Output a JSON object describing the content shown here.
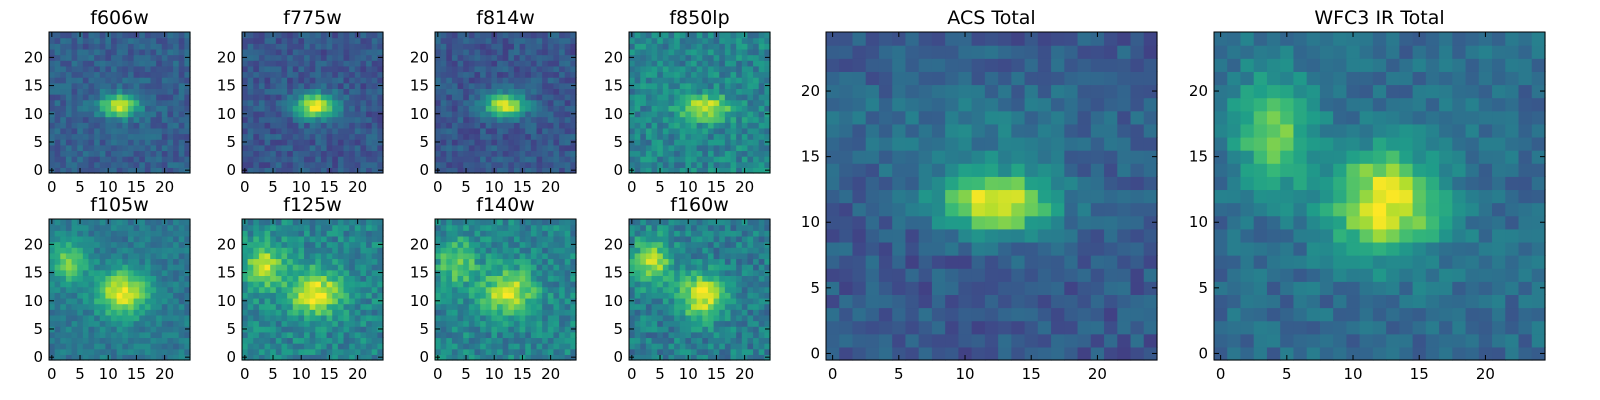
{
  "figure": {
    "colormap": "viridis",
    "colorscale_note_hidden": ""
  },
  "chart_data": [
    {
      "type": "heatmap",
      "title": "f606w",
      "xlim": [
        0,
        24
      ],
      "ylim": [
        0,
        24
      ],
      "xticks": [
        0,
        5,
        10,
        15,
        20
      ],
      "yticks": [
        0,
        5,
        10,
        15,
        20
      ],
      "bg": 0.3,
      "sources": [
        {
          "x": 12,
          "y": 11.5,
          "peak": 0.72,
          "sx": 2.4,
          "sy": 1.4
        }
      ]
    },
    {
      "type": "heatmap",
      "title": "f775w",
      "xlim": [
        0,
        24
      ],
      "ylim": [
        0,
        24
      ],
      "xticks": [
        0,
        5,
        10,
        15,
        20
      ],
      "yticks": [
        0,
        5,
        10,
        15,
        20
      ],
      "bg": 0.27,
      "sources": [
        {
          "x": 12.5,
          "y": 11.5,
          "peak": 0.72,
          "sx": 2.6,
          "sy": 1.5
        }
      ]
    },
    {
      "type": "heatmap",
      "title": "f814w",
      "xlim": [
        0,
        24
      ],
      "ylim": [
        0,
        24
      ],
      "xticks": [
        0,
        5,
        10,
        15,
        20
      ],
      "yticks": [
        0,
        5,
        10,
        15,
        20
      ],
      "bg": 0.27,
      "sources": [
        {
          "x": 12,
          "y": 11.5,
          "peak": 0.72,
          "sx": 2.5,
          "sy": 1.4
        }
      ]
    },
    {
      "type": "heatmap",
      "title": "f850lp",
      "xlim": [
        0,
        24
      ],
      "ylim": [
        0,
        24
      ],
      "xticks": [
        0,
        5,
        10,
        15,
        20
      ],
      "yticks": [
        0,
        5,
        10,
        15,
        20
      ],
      "bg": 0.45,
      "sources": [
        {
          "x": 13,
          "y": 11,
          "peak": 0.5,
          "sx": 3.2,
          "sy": 1.6
        }
      ]
    },
    {
      "type": "heatmap",
      "title": "f105w",
      "xlim": [
        0,
        24
      ],
      "ylim": [
        0,
        24
      ],
      "xticks": [
        0,
        5,
        10,
        15,
        20
      ],
      "yticks": [
        0,
        5,
        10,
        15,
        20
      ],
      "bg": 0.4,
      "sources": [
        {
          "x": 12.5,
          "y": 11.5,
          "peak": 0.6,
          "sx": 3.2,
          "sy": 2.8
        },
        {
          "x": 3,
          "y": 17,
          "peak": 0.4,
          "sx": 2.2,
          "sy": 2.6
        }
      ]
    },
    {
      "type": "heatmap",
      "title": "f125w",
      "xlim": [
        0,
        24
      ],
      "ylim": [
        0,
        24
      ],
      "xticks": [
        0,
        5,
        10,
        15,
        20
      ],
      "yticks": [
        0,
        5,
        10,
        15,
        20
      ],
      "bg": 0.45,
      "sources": [
        {
          "x": 12.5,
          "y": 11.5,
          "peak": 0.55,
          "sx": 3.2,
          "sy": 2.8
        },
        {
          "x": 3.5,
          "y": 16.5,
          "peak": 0.45,
          "sx": 2.4,
          "sy": 2.8
        }
      ]
    },
    {
      "type": "heatmap",
      "title": "f140w",
      "xlim": [
        0,
        24
      ],
      "ylim": [
        0,
        24
      ],
      "xticks": [
        0,
        5,
        10,
        15,
        20
      ],
      "yticks": [
        0,
        5,
        10,
        15,
        20
      ],
      "bg": 0.45,
      "sources": [
        {
          "x": 12.5,
          "y": 11.5,
          "peak": 0.5,
          "sx": 3.2,
          "sy": 2.8
        },
        {
          "x": 3.5,
          "y": 17,
          "peak": 0.35,
          "sx": 2.4,
          "sy": 2.8
        }
      ]
    },
    {
      "type": "heatmap",
      "title": "f160w",
      "xlim": [
        0,
        24
      ],
      "ylim": [
        0,
        24
      ],
      "xticks": [
        0,
        5,
        10,
        15,
        20
      ],
      "yticks": [
        0,
        5,
        10,
        15,
        20
      ],
      "bg": 0.42,
      "sources": [
        {
          "x": 12.5,
          "y": 11,
          "peak": 0.55,
          "sx": 3.0,
          "sy": 2.8
        },
        {
          "x": 3.5,
          "y": 17,
          "peak": 0.45,
          "sx": 2.4,
          "sy": 3.0
        }
      ]
    },
    {
      "type": "heatmap",
      "title": "ACS Total",
      "xlim": [
        0,
        24
      ],
      "ylim": [
        0,
        24
      ],
      "xticks": [
        0,
        5,
        10,
        15,
        20
      ],
      "yticks": [
        0,
        5,
        10,
        15,
        20
      ],
      "bg": 0.28,
      "sources": [
        {
          "x": 12.5,
          "y": 11.5,
          "peak": 0.72,
          "sx": 3.0,
          "sy": 1.6
        },
        {
          "x": 10,
          "y": 17,
          "peak": 0.12,
          "sx": 8.0,
          "sy": 3.0
        }
      ]
    },
    {
      "type": "heatmap",
      "title": "WFC3 IR Total",
      "xlim": [
        0,
        24
      ],
      "ylim": [
        0,
        24
      ],
      "xticks": [
        0,
        5,
        10,
        15,
        20
      ],
      "yticks": [
        0,
        5,
        10,
        15,
        20
      ],
      "bg": 0.35,
      "sources": [
        {
          "x": 12.5,
          "y": 11.5,
          "peak": 0.65,
          "sx": 3.0,
          "sy": 2.8
        },
        {
          "x": 4,
          "y": 17,
          "peak": 0.42,
          "sx": 2.2,
          "sy": 3.0
        }
      ]
    }
  ]
}
